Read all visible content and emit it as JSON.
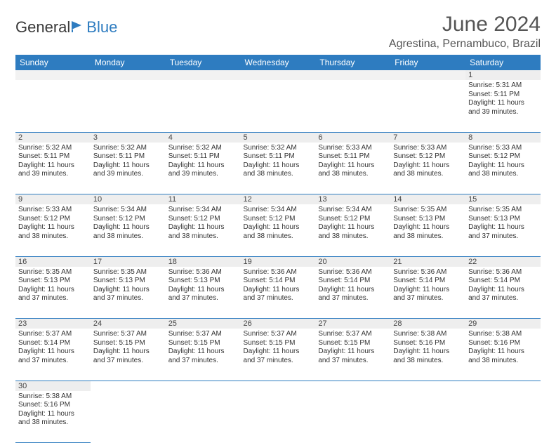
{
  "logo": {
    "text1": "General",
    "text2": "Blue",
    "color1": "#3a3a3a",
    "color2": "#2e7cc0"
  },
  "title": "June 2024",
  "location": "Agrestina, Pernambuco, Brazil",
  "colors": {
    "header_bg": "#2e7cc0",
    "header_fg": "#ffffff",
    "daynum_bg": "#eeeeee",
    "cell_border": "#2e7cc0",
    "text": "#333333"
  },
  "weekdays": [
    "Sunday",
    "Monday",
    "Tuesday",
    "Wednesday",
    "Thursday",
    "Friday",
    "Saturday"
  ],
  "leading_blanks": 6,
  "days": [
    {
      "n": 1,
      "sunrise": "5:31 AM",
      "sunset": "5:11 PM",
      "daylight": "11 hours and 39 minutes."
    },
    {
      "n": 2,
      "sunrise": "5:32 AM",
      "sunset": "5:11 PM",
      "daylight": "11 hours and 39 minutes."
    },
    {
      "n": 3,
      "sunrise": "5:32 AM",
      "sunset": "5:11 PM",
      "daylight": "11 hours and 39 minutes."
    },
    {
      "n": 4,
      "sunrise": "5:32 AM",
      "sunset": "5:11 PM",
      "daylight": "11 hours and 39 minutes."
    },
    {
      "n": 5,
      "sunrise": "5:32 AM",
      "sunset": "5:11 PM",
      "daylight": "11 hours and 38 minutes."
    },
    {
      "n": 6,
      "sunrise": "5:33 AM",
      "sunset": "5:11 PM",
      "daylight": "11 hours and 38 minutes."
    },
    {
      "n": 7,
      "sunrise": "5:33 AM",
      "sunset": "5:12 PM",
      "daylight": "11 hours and 38 minutes."
    },
    {
      "n": 8,
      "sunrise": "5:33 AM",
      "sunset": "5:12 PM",
      "daylight": "11 hours and 38 minutes."
    },
    {
      "n": 9,
      "sunrise": "5:33 AM",
      "sunset": "5:12 PM",
      "daylight": "11 hours and 38 minutes."
    },
    {
      "n": 10,
      "sunrise": "5:34 AM",
      "sunset": "5:12 PM",
      "daylight": "11 hours and 38 minutes."
    },
    {
      "n": 11,
      "sunrise": "5:34 AM",
      "sunset": "5:12 PM",
      "daylight": "11 hours and 38 minutes."
    },
    {
      "n": 12,
      "sunrise": "5:34 AM",
      "sunset": "5:12 PM",
      "daylight": "11 hours and 38 minutes."
    },
    {
      "n": 13,
      "sunrise": "5:34 AM",
      "sunset": "5:12 PM",
      "daylight": "11 hours and 38 minutes."
    },
    {
      "n": 14,
      "sunrise": "5:35 AM",
      "sunset": "5:13 PM",
      "daylight": "11 hours and 38 minutes."
    },
    {
      "n": 15,
      "sunrise": "5:35 AM",
      "sunset": "5:13 PM",
      "daylight": "11 hours and 37 minutes."
    },
    {
      "n": 16,
      "sunrise": "5:35 AM",
      "sunset": "5:13 PM",
      "daylight": "11 hours and 37 minutes."
    },
    {
      "n": 17,
      "sunrise": "5:35 AM",
      "sunset": "5:13 PM",
      "daylight": "11 hours and 37 minutes."
    },
    {
      "n": 18,
      "sunrise": "5:36 AM",
      "sunset": "5:13 PM",
      "daylight": "11 hours and 37 minutes."
    },
    {
      "n": 19,
      "sunrise": "5:36 AM",
      "sunset": "5:14 PM",
      "daylight": "11 hours and 37 minutes."
    },
    {
      "n": 20,
      "sunrise": "5:36 AM",
      "sunset": "5:14 PM",
      "daylight": "11 hours and 37 minutes."
    },
    {
      "n": 21,
      "sunrise": "5:36 AM",
      "sunset": "5:14 PM",
      "daylight": "11 hours and 37 minutes."
    },
    {
      "n": 22,
      "sunrise": "5:36 AM",
      "sunset": "5:14 PM",
      "daylight": "11 hours and 37 minutes."
    },
    {
      "n": 23,
      "sunrise": "5:37 AM",
      "sunset": "5:14 PM",
      "daylight": "11 hours and 37 minutes."
    },
    {
      "n": 24,
      "sunrise": "5:37 AM",
      "sunset": "5:15 PM",
      "daylight": "11 hours and 37 minutes."
    },
    {
      "n": 25,
      "sunrise": "5:37 AM",
      "sunset": "5:15 PM",
      "daylight": "11 hours and 37 minutes."
    },
    {
      "n": 26,
      "sunrise": "5:37 AM",
      "sunset": "5:15 PM",
      "daylight": "11 hours and 37 minutes."
    },
    {
      "n": 27,
      "sunrise": "5:37 AM",
      "sunset": "5:15 PM",
      "daylight": "11 hours and 37 minutes."
    },
    {
      "n": 28,
      "sunrise": "5:38 AM",
      "sunset": "5:16 PM",
      "daylight": "11 hours and 38 minutes."
    },
    {
      "n": 29,
      "sunrise": "5:38 AM",
      "sunset": "5:16 PM",
      "daylight": "11 hours and 38 minutes."
    },
    {
      "n": 30,
      "sunrise": "5:38 AM",
      "sunset": "5:16 PM",
      "daylight": "11 hours and 38 minutes."
    }
  ],
  "labels": {
    "sunrise": "Sunrise:",
    "sunset": "Sunset:",
    "daylight": "Daylight:"
  }
}
